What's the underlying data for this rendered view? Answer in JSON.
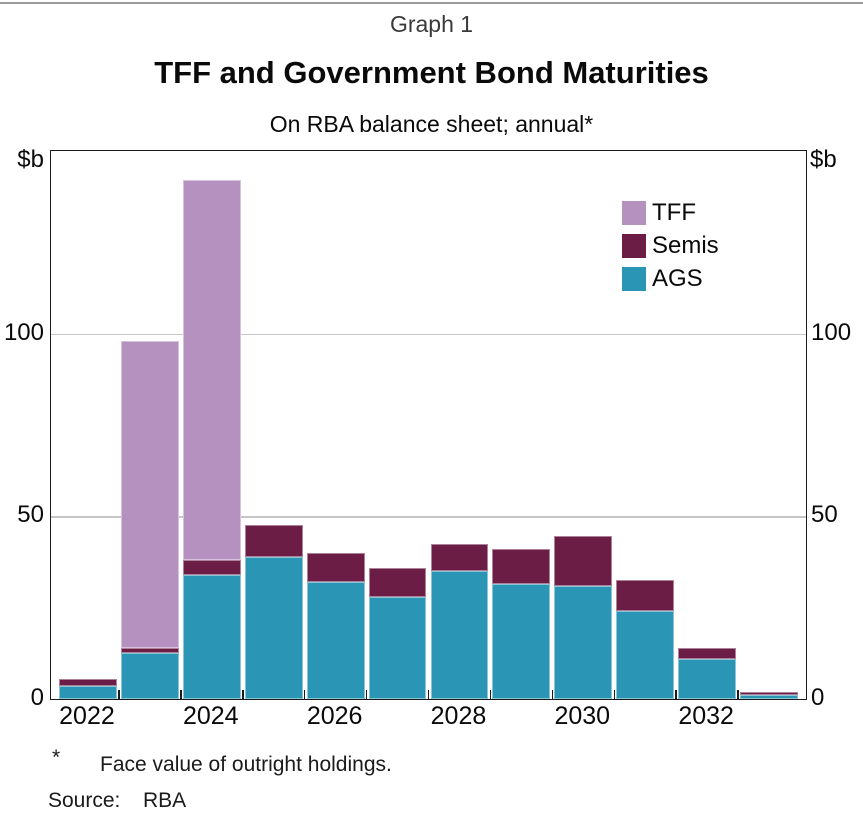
{
  "header": {
    "graph_number": "Graph 1",
    "title": "TFF and Government Bond Maturities",
    "subtitle": "On RBA balance sheet; annual*"
  },
  "y_axis": {
    "unit_label": "$b",
    "ticks": [
      0,
      50,
      100
    ],
    "max": 150
  },
  "legend": {
    "position": "top-right",
    "items": [
      {
        "label": "TFF",
        "color": "#b491bf"
      },
      {
        "label": "Semis",
        "color": "#6c1d45"
      },
      {
        "label": "AGS",
        "color": "#2a95b4"
      }
    ]
  },
  "chart_data": {
    "type": "bar",
    "stacked": true,
    "title": "TFF and Government Bond Maturities",
    "subtitle": "On RBA balance sheet; annual*",
    "ylabel": "$b",
    "ylim": [
      0,
      150
    ],
    "grid_on": true,
    "grid_values": [
      50,
      100
    ],
    "categories": [
      2022,
      2023,
      2024,
      2025,
      2026,
      2027,
      2028,
      2029,
      2030,
      2031,
      2032,
      2033
    ],
    "x_tick_labels": [
      "2022",
      "2024",
      "2026",
      "2028",
      "2030",
      "2032"
    ],
    "x_tick_slot_indexes": [
      0,
      2,
      4,
      6,
      8,
      10
    ],
    "series": [
      {
        "name": "AGS",
        "color": "#2a95b4",
        "values": [
          3.5,
          12.5,
          34,
          39,
          32,
          28,
          35,
          31.5,
          31,
          24,
          11,
          1
        ]
      },
      {
        "name": "Semis",
        "color": "#6c1d45",
        "values": [
          2,
          1.5,
          4,
          8.5,
          8,
          8,
          7.5,
          9.5,
          13.5,
          8.5,
          3,
          1
        ]
      },
      {
        "name": "TFF",
        "color": "#b491bf",
        "values": [
          0,
          84,
          104,
          0,
          0,
          0,
          0,
          0,
          0,
          0,
          0,
          0
        ]
      }
    ],
    "stack_order_bottom_to_top": [
      "AGS",
      "Semis",
      "TFF"
    ],
    "totals": [
      5.5,
      98,
      142,
      47.5,
      40,
      36,
      42.5,
      41,
      44.5,
      32.5,
      14,
      2
    ]
  },
  "footnote": {
    "marker": "*",
    "text": "Face value of outright holdings."
  },
  "source": {
    "label": "Source:",
    "value": "RBA"
  }
}
